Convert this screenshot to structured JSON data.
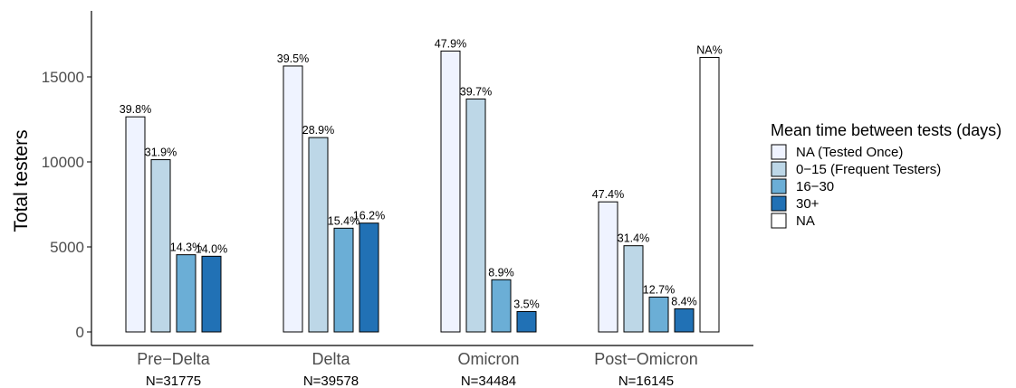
{
  "chart_data": {
    "type": "bar",
    "ylabel": "Total testers",
    "ylim": [
      0,
      18000
    ],
    "yticks": [
      0,
      5000,
      10000,
      15000
    ],
    "categories": [
      "Pre−Delta",
      "Delta",
      "Omicron",
      "Post−Omicron"
    ],
    "n_labels": [
      "N=31775",
      "N=39578",
      "N=34484",
      "N=16145"
    ],
    "legend": {
      "title": "Mean time between tests (days)",
      "placement": "right"
    },
    "series": [
      {
        "name": "NA (Tested Once)",
        "color": "#eff3ff",
        "values": [
          12650,
          15640,
          16520,
          7650
        ],
        "labels": [
          "39.8%",
          "39.5%",
          "47.9%",
          "47.4%"
        ]
      },
      {
        "name": "0−15 (Frequent Testers)",
        "color": "#bdd7e7",
        "values": [
          10130,
          11430,
          13700,
          5070
        ],
        "labels": [
          "31.9%",
          "28.9%",
          "39.7%",
          "31.4%"
        ]
      },
      {
        "name": "16−30",
        "color": "#6baed6",
        "values": [
          4540,
          6100,
          3070,
          2050
        ],
        "labels": [
          "14.3%",
          "15.4%",
          "8.9%",
          "12.7%"
        ]
      },
      {
        "name": "30+",
        "color": "#2171b5",
        "values": [
          4450,
          6400,
          1200,
          1360
        ],
        "labels": [
          "14.0%",
          "16.2%",
          "3.5%",
          "8.4%"
        ]
      },
      {
        "name": "NA",
        "color": "#ffffff",
        "values": [
          null,
          null,
          null,
          16145
        ],
        "labels": [
          null,
          null,
          null,
          "NA%"
        ]
      }
    ],
    "grid": false
  }
}
